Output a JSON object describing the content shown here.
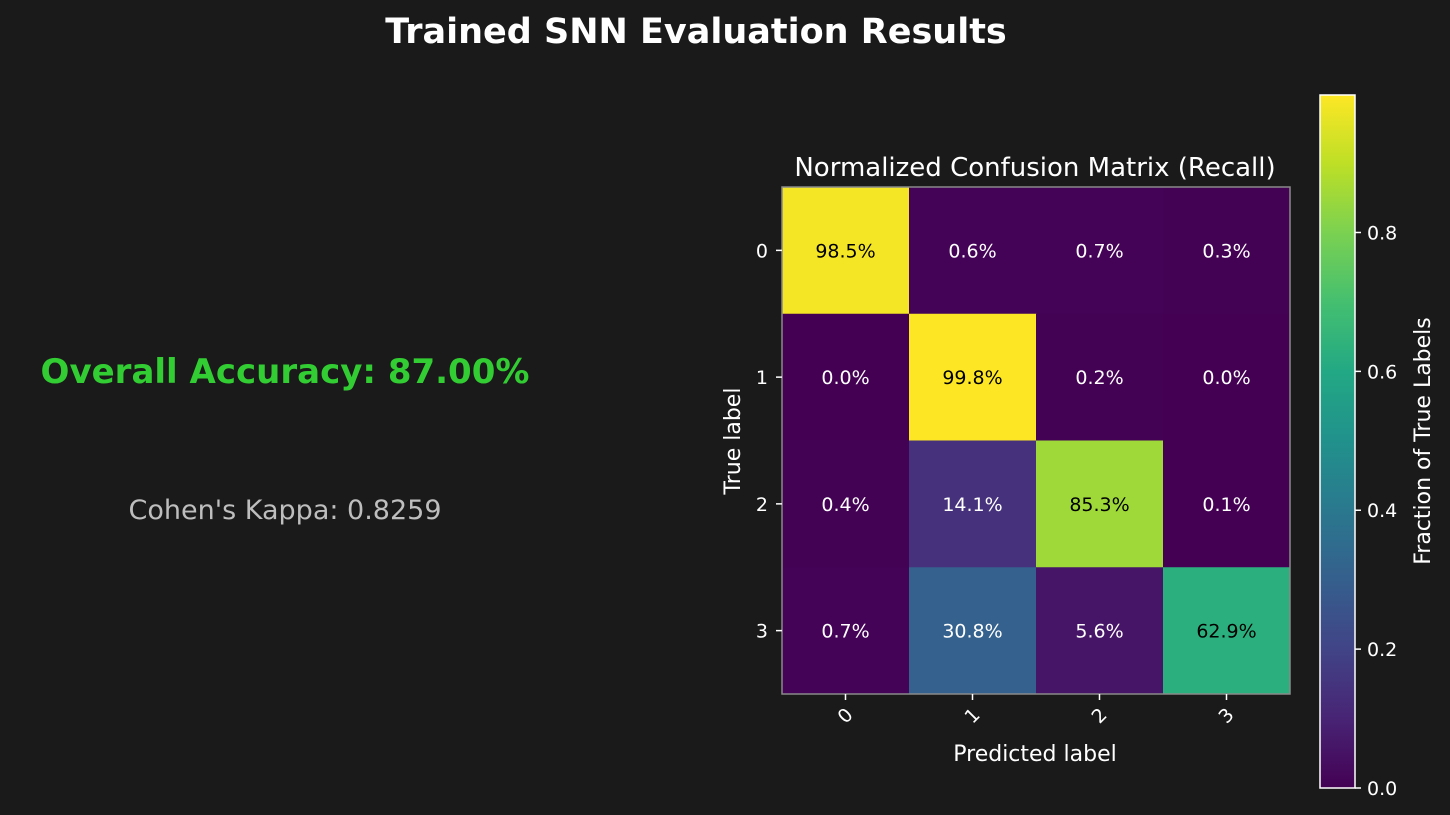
{
  "figure": {
    "title": "Trained SNN Evaluation Results",
    "accuracy_text": "Overall Accuracy: 87.00%",
    "kappa_text": "Cohen's Kappa: 0.8259"
  },
  "colors": {
    "background": "#1a1a1a",
    "title": "#ffffff",
    "accuracy": "#32cd32",
    "kappa": "#bebebe",
    "colormap": "viridis"
  },
  "chart_data": {
    "type": "heatmap",
    "title": "Normalized Confusion Matrix (Recall)",
    "xlabel": "Predicted label",
    "ylabel": "True label",
    "x_categories": [
      "0",
      "1",
      "2",
      "3"
    ],
    "y_categories": [
      "0",
      "1",
      "2",
      "3"
    ],
    "values": [
      [
        0.985,
        0.006,
        0.007,
        0.003
      ],
      [
        0.0,
        0.998,
        0.002,
        0.0
      ],
      [
        0.004,
        0.141,
        0.853,
        0.001
      ],
      [
        0.007,
        0.308,
        0.056,
        0.629
      ]
    ],
    "cell_labels": [
      [
        "98.5%",
        "0.6%",
        "0.7%",
        "0.3%"
      ],
      [
        "0.0%",
        "99.8%",
        "0.2%",
        "0.0%"
      ],
      [
        "0.4%",
        "14.1%",
        "85.3%",
        "0.1%"
      ],
      [
        "0.7%",
        "30.8%",
        "5.6%",
        "62.9%"
      ]
    ],
    "colorbar": {
      "label": "Fraction of True Labels",
      "ticks": [
        0.0,
        0.2,
        0.4,
        0.6,
        0.8
      ],
      "tick_labels": [
        "0.0",
        "0.2",
        "0.4",
        "0.6",
        "0.8"
      ],
      "range": [
        0.0,
        0.998
      ]
    }
  }
}
